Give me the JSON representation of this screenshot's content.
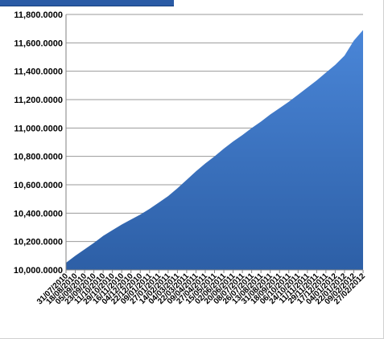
{
  "chart_data": {
    "type": "area",
    "title": "",
    "xlabel": "",
    "ylabel": "",
    "ylim": [
      10000,
      11800
    ],
    "y_ticks": [
      "11,800.0000",
      "11,600.0000",
      "11,400.0000",
      "11,200.0000",
      "11,000.0000",
      "10,800.0000",
      "10,600.0000",
      "10,400.0000",
      "10,200.0000",
      "10,000.0000"
    ],
    "x_ticks": [
      "31/07/2010",
      "18/08/2010",
      "05/09/2010",
      "23/09/2010",
      "11/10/2010",
      "29/10/2010",
      "16/11/2010",
      "04/12/2010",
      "22/12/2010",
      "09/01/2011",
      "27/01/2011",
      "14/02/2011",
      "04/03/2011",
      "22/03/2011",
      "09/04/2011",
      "27/04/2011",
      "15/05/2011",
      "02/06/2011",
      "20/06/2011",
      "08/07/2011",
      "26/07/2011",
      "13/08/2011",
      "31/08/2011",
      "18/09/2011",
      "06/10/2011",
      "24/10/2011",
      "11/11/2011",
      "29/11/2011",
      "17/12/2011",
      "04/01/2012",
      "22/01/2012",
      "09/02/2012",
      "27/02/2012"
    ],
    "values": [
      10050,
      10100,
      10145,
      10190,
      10240,
      10280,
      10320,
      10355,
      10390,
      10430,
      10475,
      10520,
      10575,
      10635,
      10695,
      10750,
      10800,
      10855,
      10905,
      10950,
      11000,
      11045,
      11095,
      11140,
      11185,
      11235,
      11285,
      11335,
      11390,
      11445,
      11510,
      11615,
      11690
    ],
    "grid": true,
    "legend": "none",
    "fill_color": "#2d5fa6",
    "fill_color_light": "#4a86d8",
    "gridline_color": "#9a9a9a"
  }
}
